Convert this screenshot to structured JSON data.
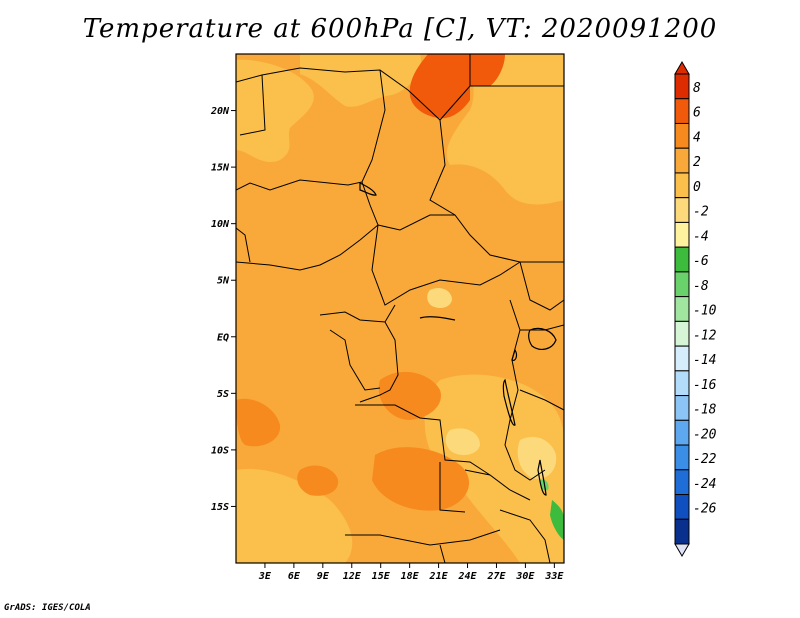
{
  "title": "Temperature at 600hPa [C], VT: 2020091200",
  "credit": "GrADS: IGES/COLA",
  "map": {
    "lon_range": [
      0,
      34
    ],
    "lat_range": [
      -20,
      25
    ],
    "lat_ticks": [
      {
        "value": 20,
        "label": "20N"
      },
      {
        "value": 15,
        "label": "15N"
      },
      {
        "value": 10,
        "label": "10N"
      },
      {
        "value": 5,
        "label": "5N"
      },
      {
        "value": 0,
        "label": "EQ"
      },
      {
        "value": -5,
        "label": "5S"
      },
      {
        "value": -10,
        "label": "10S"
      },
      {
        "value": -15,
        "label": "15S"
      }
    ],
    "lon_ticks": [
      {
        "value": 3,
        "label": "3E"
      },
      {
        "value": 6,
        "label": "6E"
      },
      {
        "value": 9,
        "label": "9E"
      },
      {
        "value": 12,
        "label": "12E"
      },
      {
        "value": 15,
        "label": "15E"
      },
      {
        "value": 18,
        "label": "18E"
      },
      {
        "value": 21,
        "label": "21E"
      },
      {
        "value": 24,
        "label": "24E"
      },
      {
        "value": 27,
        "label": "27E"
      },
      {
        "value": 30,
        "label": "30E"
      },
      {
        "value": 33,
        "label": "33E"
      }
    ]
  },
  "colorbar": {
    "labels": [
      "8",
      "6",
      "4",
      "2",
      "0",
      "-2",
      "-4",
      "-6",
      "-8",
      "-10",
      "-12",
      "-14",
      "-16",
      "-18",
      "-20",
      "-22",
      "-24",
      "-26"
    ],
    "colors": [
      "#dd2c00",
      "#f05a0a",
      "#f78a1e",
      "#f9a93a",
      "#fbbf4b",
      "#fcd97a",
      "#fff29e",
      "#3dbb3d",
      "#6ad26a",
      "#a0e6a0",
      "#d6f5d6",
      "#d6eefb",
      "#b2dcfa",
      "#8bc4f5",
      "#5ea8ef",
      "#3a8ee6",
      "#1f6ed8",
      "#0f4fc0",
      "#08308c"
    ],
    "top_color": "#dd2c00",
    "bottom_color": "#e0e4f8"
  }
}
